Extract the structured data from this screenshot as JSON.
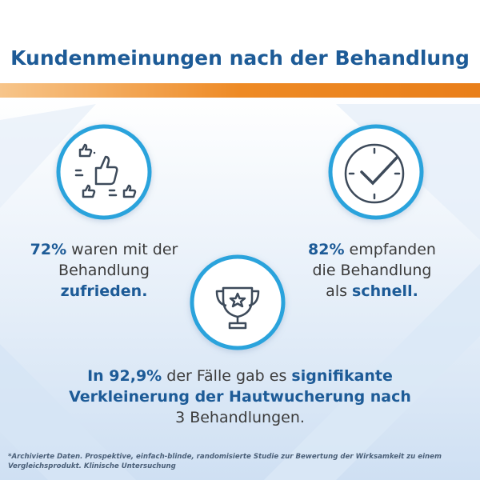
{
  "title": "Kundenmeinungen nach der Behandlung",
  "stats": [
    {
      "lines": [
        [
          {
            "text": "72%",
            "strong": true
          },
          {
            "text": " waren mit der",
            "strong": false
          }
        ],
        [
          {
            "text": "Behandlung",
            "strong": false
          }
        ],
        [
          {
            "text": "zufrieden.",
            "strong": true
          }
        ]
      ]
    },
    {
      "lines": [
        [
          {
            "text": "82%",
            "strong": true
          },
          {
            "text": " empfanden",
            "strong": false
          }
        ],
        [
          {
            "text": "die Behandlung",
            "strong": false
          }
        ],
        [
          {
            "text": "als ",
            "strong": false
          },
          {
            "text": "schnell.",
            "strong": true
          }
        ]
      ]
    },
    {
      "lines": [
        [
          {
            "text": "In 92,9%",
            "strong": true
          },
          {
            "text": " der Fälle gab es ",
            "strong": false
          },
          {
            "text": "signifikante",
            "strong": true
          }
        ],
        [
          {
            "text": "Verkleinerung der Hautwucherung nach",
            "strong": true
          }
        ],
        [
          {
            "text": "3 Behandlungen.",
            "strong": false
          }
        ]
      ]
    }
  ],
  "footnote": "*Archivierte Daten. Prospektive, einfach-blinde, randomisierte Studie zur Bewertung der Wirksamkeit zu einem Vergleichsprodukt. Klinische Untersuchung"
}
